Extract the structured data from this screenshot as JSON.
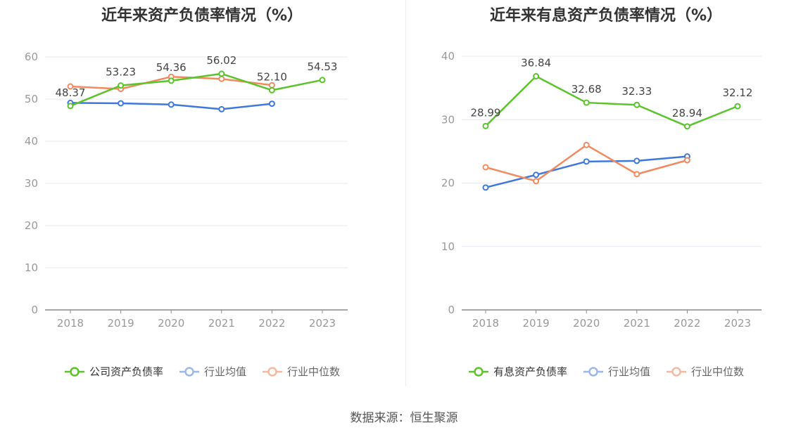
{
  "colors": {
    "company": "#5ac42a",
    "avg": "#3f78dc",
    "median": "#f28a5f",
    "grid": "#e6e9f2",
    "axis": "#999999"
  },
  "chart_data": [
    {
      "type": "line",
      "title": "近年来资产负债率情况（%）",
      "x": [
        "2018",
        "2019",
        "2020",
        "2021",
        "2022",
        "2023"
      ],
      "ylim": [
        0,
        60
      ],
      "yticks": [
        "0",
        "10",
        "20",
        "30",
        "40",
        "50",
        "60"
      ],
      "grid": true,
      "legend_position": "bottom",
      "series": [
        {
          "name": "公司资产负债率",
          "values": [
            48.37,
            53.23,
            54.36,
            56.02,
            52.1,
            54.53
          ],
          "labels": [
            "48.37",
            "53.23",
            "54.36",
            "56.02",
            "52.10",
            "54.53"
          ]
        },
        {
          "name": "行业均值",
          "values": [
            49.1,
            49.0,
            48.7,
            47.6,
            48.9,
            null
          ]
        },
        {
          "name": "行业中位数",
          "values": [
            53.0,
            52.4,
            55.3,
            54.8,
            53.3,
            null
          ]
        }
      ]
    },
    {
      "type": "line",
      "title": "近年来有息资产负债率情况（%）",
      "x": [
        "2018",
        "2019",
        "2020",
        "2021",
        "2022",
        "2023"
      ],
      "ylim": [
        0,
        40
      ],
      "yticks": [
        "0",
        "10",
        "20",
        "30",
        "40"
      ],
      "grid": true,
      "legend_position": "bottom",
      "series": [
        {
          "name": "有息资产负债率",
          "values": [
            28.99,
            36.84,
            32.68,
            32.33,
            28.94,
            32.12
          ],
          "labels": [
            "28.99",
            "36.84",
            "32.68",
            "32.33",
            "28.94",
            "32.12"
          ]
        },
        {
          "name": "行业均值",
          "values": [
            19.3,
            21.3,
            23.4,
            23.5,
            24.2,
            null
          ]
        },
        {
          "name": "行业中位数",
          "values": [
            22.5,
            20.3,
            26.0,
            21.4,
            23.6,
            null
          ]
        }
      ]
    }
  ],
  "footer": {
    "source": "数据来源：恒生聚源"
  }
}
